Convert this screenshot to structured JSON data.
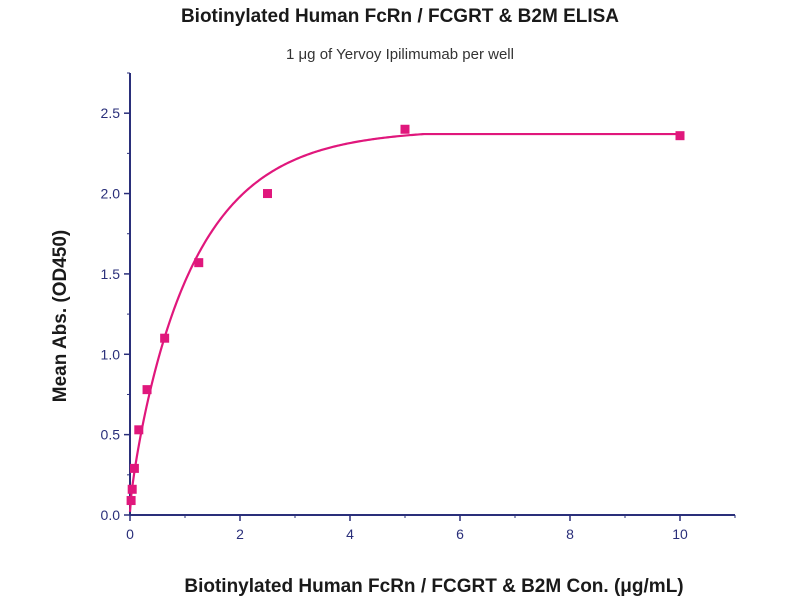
{
  "chart_data": {
    "type": "scatter",
    "title": "Biotinylated Human FcRn / FCGRT & B2M ELISA",
    "subtitle": "1 μg of Yervoy Ipilimumab per well",
    "xlabel": "Biotinylated Human FcRn / FCGRT & B2M Con. (μg/mL)",
    "ylabel": "Mean Abs. (OD450)",
    "xlim": [
      0,
      11
    ],
    "ylim": [
      0,
      2.75
    ],
    "xticks": [
      0,
      2,
      4,
      6,
      8,
      10
    ],
    "yticks": [
      0.0,
      0.5,
      1.0,
      1.5,
      2.0,
      2.5
    ],
    "xtick_labels": [
      "0",
      "2",
      "4",
      "6",
      "8",
      "10"
    ],
    "ytick_labels": [
      "0.0",
      "0.5",
      "1.0",
      "1.5",
      "2.0",
      "2.5"
    ],
    "grid": false,
    "series": [
      {
        "x": [
          0.02,
          0.04,
          0.08,
          0.16,
          0.31,
          0.63,
          1.25,
          2.5,
          5,
          10
        ],
        "values": [
          0.09,
          0.16,
          0.29,
          0.53,
          0.78,
          1.1,
          1.57,
          2.0,
          2.4,
          2.36
        ],
        "color": "#e0177c",
        "marker": "square"
      }
    ],
    "fit_curve": {
      "color": "#e0177c"
    }
  }
}
